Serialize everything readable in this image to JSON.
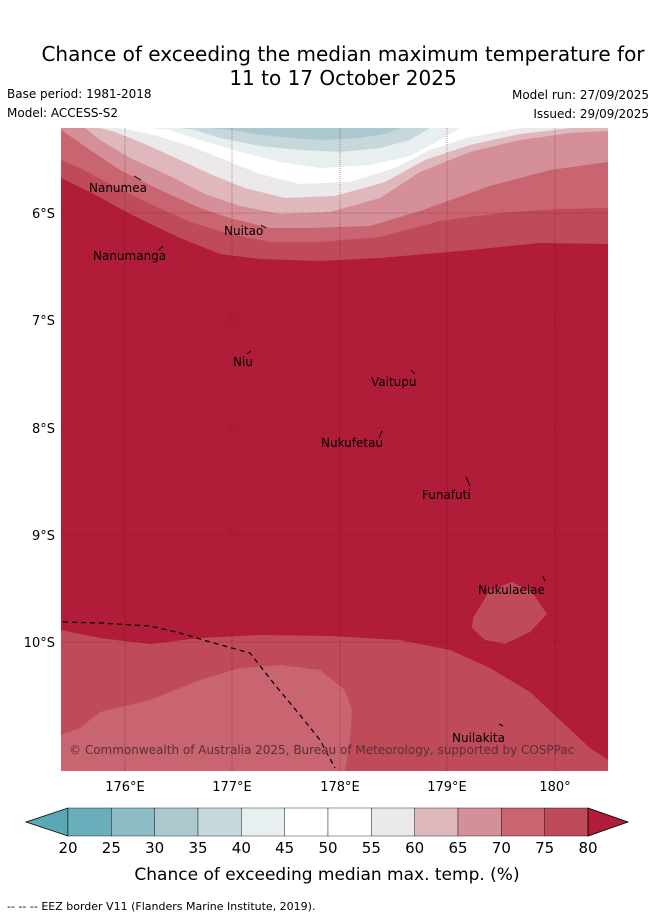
{
  "header": {
    "title_line1": "Chance of exceeding the median maximum temperature for",
    "title_line2": "11 to 17 October 2025",
    "base_period": "Base period: 1981-2018",
    "model": "Model: ACCESS-S2",
    "model_run": "Model run: 27/09/2025",
    "issued": "Issued: 29/09/2025"
  },
  "map": {
    "lat_labels": [
      "6°S",
      "7°S",
      "8°S",
      "9°S",
      "10°S"
    ],
    "lon_labels": [
      "176°E",
      "177°E",
      "178°E",
      "179°E",
      "180°"
    ],
    "places": [
      "Nanumea",
      "Nuitao",
      "Nanumanga",
      "Niu",
      "Vaitupu",
      "Nukufetau",
      "Funafuti",
      "Nukulaelae",
      "Nuilakita"
    ],
    "copyright": "© Commonwealth of Australia 2025, Bureau of Meteorology, supported by COSPPac"
  },
  "colorbar": {
    "ticks": [
      "20",
      "25",
      "30",
      "35",
      "40",
      "45",
      "50",
      "55",
      "60",
      "65",
      "70",
      "75",
      "80"
    ],
    "colors": [
      "#6aaebc",
      "#8dbbc6",
      "#abc9ce",
      "#c7d8dc",
      "#e8eff1",
      "#ffffff",
      "#ffffff",
      "#ece9ea",
      "#dfb8bd",
      "#d48f98",
      "#c96471",
      "#bf4a5a"
    ],
    "below_color": "#5aa7b6",
    "above_color": "#b11c38",
    "label": "Chance of exceeding median max. temp. (%)"
  },
  "footer": {
    "eez_symbol": "-- -- --",
    "eez_label": "EEZ border V11 (Flanders Marine Institute, 2019)."
  }
}
